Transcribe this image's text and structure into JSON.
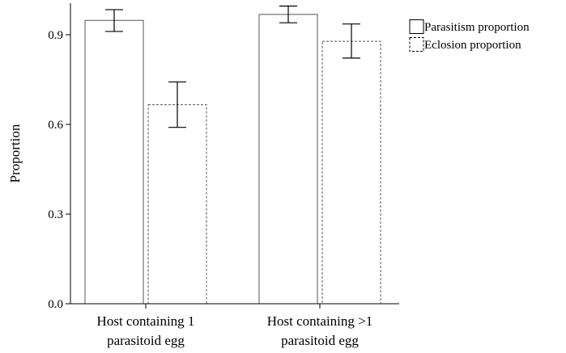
{
  "chart_data": {
    "type": "bar",
    "title": "",
    "xlabel": "",
    "ylabel": "Proportion",
    "ylim": [
      0,
      1.0
    ],
    "yticks": [
      "0.0",
      "0.3",
      "0.6",
      "0.9"
    ],
    "ytick_values": [
      0.0,
      0.3,
      0.6,
      0.9
    ],
    "categories": [
      {
        "line1": "Host containing 1",
        "line2": "parasitoid egg"
      },
      {
        "line1": "Host containing >1",
        "line2": "parasitoid egg"
      }
    ],
    "series": [
      {
        "name": "Parasitism proportion",
        "style": "solid",
        "values": [
          0.948,
          0.968
        ],
        "error_low": [
          0.911,
          0.94
        ],
        "error_high": [
          0.984,
          0.996
        ]
      },
      {
        "name": "Eclosion proportion",
        "style": "dashed",
        "values": [
          0.666,
          0.878
        ],
        "error_low": [
          0.59,
          0.822
        ],
        "error_high": [
          0.742,
          0.936
        ]
      }
    ],
    "grid": false,
    "legend_position": "top-right",
    "colors": {
      "bar_fill": "#ffffff",
      "stroke": "#000000",
      "bar_stroke": "#555555"
    }
  }
}
